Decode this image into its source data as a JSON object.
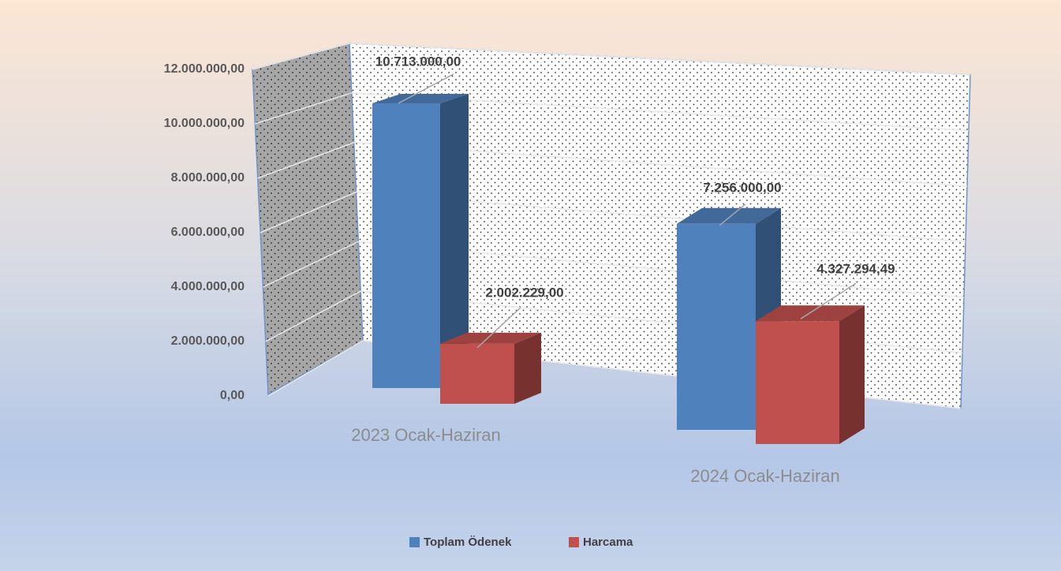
{
  "chart_data": {
    "type": "bar3d",
    "categories": [
      "2023 Ocak-Haziran",
      "2024 Ocak-Haziran"
    ],
    "series": [
      {
        "name": "Toplam Ödenek",
        "color": "#4f81bd",
        "values": [
          10713000,
          7256000
        ],
        "value_labels": [
          "10.713.000,00",
          "7.256.000,00"
        ]
      },
      {
        "name": "Harcama",
        "color": "#c0504d",
        "values": [
          2002229,
          4327294.49
        ],
        "value_labels": [
          "2.002.229,00",
          "4.327.294,49"
        ]
      }
    ],
    "ylim": [
      0,
      12000000
    ],
    "yticks": [
      {
        "value": 0,
        "label": "0,00"
      },
      {
        "value": 2000000,
        "label": "2.000.000,00"
      },
      {
        "value": 4000000,
        "label": "4.000.000,00"
      },
      {
        "value": 6000000,
        "label": "6.000.000,00"
      },
      {
        "value": 8000000,
        "label": "8.000.000,00"
      },
      {
        "value": 10000000,
        "label": "10.000.000,00"
      },
      {
        "value": 12000000,
        "label": "12.000.000,00"
      }
    ],
    "grid": true,
    "legend": "bottom"
  }
}
